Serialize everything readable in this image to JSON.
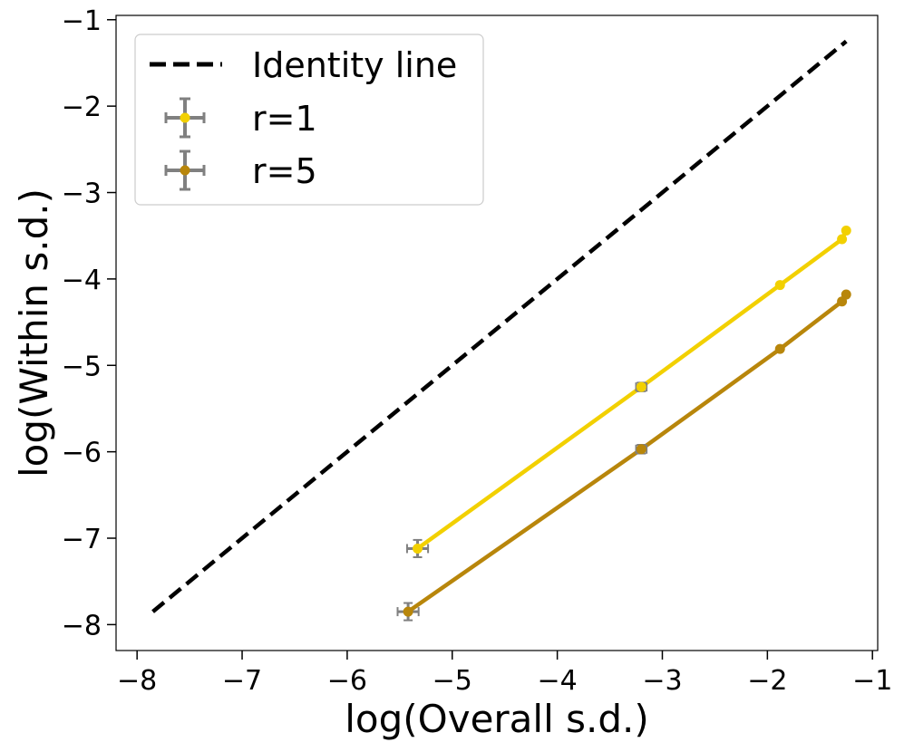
{
  "chart_data": {
    "type": "scatter",
    "xlabel": "log(Overall s.d.)",
    "ylabel": "log(Within s.d.)",
    "xlim": [
      -8.2,
      -0.95
    ],
    "ylim": [
      -8.3,
      -0.95
    ],
    "xticks": [
      -8,
      -7,
      -6,
      -5,
      -4,
      -3,
      -2,
      -1
    ],
    "yticks": [
      -8,
      -7,
      -6,
      -5,
      -4,
      -3,
      -2,
      -1
    ],
    "xtick_labels": [
      "−8",
      "−7",
      "−6",
      "−5",
      "−4",
      "−3",
      "−2",
      "−1"
    ],
    "ytick_labels": [
      "−8",
      "−7",
      "−6",
      "−5",
      "−4",
      "−3",
      "−2",
      "−1"
    ],
    "grid": false,
    "legend_position": "top-left",
    "identity_line": {
      "name": "Identity line",
      "x": [
        -7.85,
        -1.25
      ],
      "y": [
        -7.85,
        -1.25
      ],
      "color": "#000000",
      "style": "dashed"
    },
    "series": [
      {
        "name": "r=1",
        "color": "#F2D000",
        "errorbar_color": "#808080",
        "x": [
          -5.33,
          -3.2,
          -1.88,
          -1.29,
          -1.25
        ],
        "y": [
          -7.12,
          -5.25,
          -4.07,
          -3.54,
          -3.44
        ],
        "xerr": [
          0.1,
          0.05,
          0.0,
          0.0,
          0.0
        ],
        "yerr": [
          0.1,
          0.05,
          0.0,
          0.0,
          0.0
        ]
      },
      {
        "name": "r=5",
        "color": "#B8860B",
        "errorbar_color": "#808080",
        "x": [
          -5.42,
          -3.2,
          -1.88,
          -1.29,
          -1.25
        ],
        "y": [
          -7.85,
          -5.97,
          -4.81,
          -4.26,
          -4.18
        ],
        "xerr": [
          0.1,
          0.05,
          0.0,
          0.0,
          0.0
        ],
        "yerr": [
          0.1,
          0.05,
          0.0,
          0.0,
          0.0
        ]
      }
    ]
  }
}
